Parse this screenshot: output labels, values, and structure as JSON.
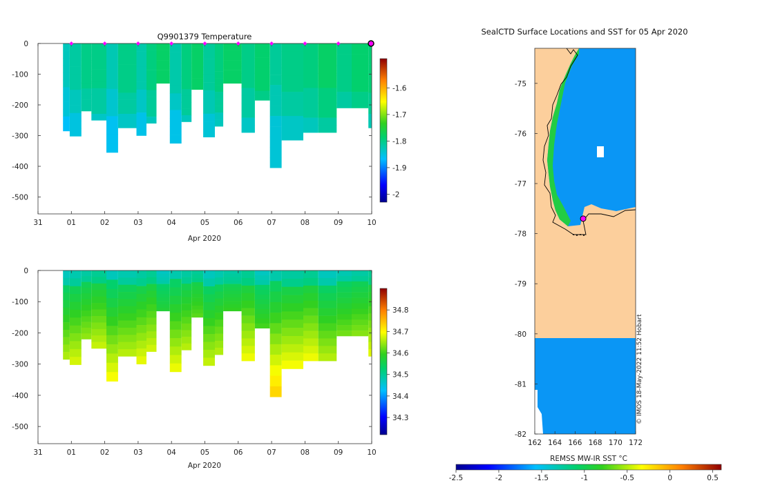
{
  "chart_data": [
    {
      "type": "heatmap",
      "title": "Q9901379  Temperature",
      "xlabel": "Apr 2020",
      "ylabel": "",
      "x_ticks": [
        "31",
        "01",
        "02",
        "03",
        "04",
        "05",
        "06",
        "07",
        "08",
        "09",
        "10"
      ],
      "y_ticks": [
        "0",
        "-100",
        "-200",
        "-300",
        "-400",
        "-500"
      ],
      "ylim": [
        -555,
        0
      ],
      "colorbar_ticks": [
        "-1.6",
        "-1.7",
        "-1.8",
        "-1.9",
        "-2"
      ],
      "colorbar_range": [
        -2.03,
        -1.49
      ],
      "profile_markers_days": [
        1,
        2,
        3,
        4,
        5,
        6,
        7,
        8,
        9
      ],
      "profiles": [
        {
          "day": 0.75,
          "depth": 285,
          "value": -1.83
        },
        {
          "day": 0.95,
          "depth": 302,
          "value": -1.82
        },
        {
          "day": 1.3,
          "depth": 220,
          "value": -1.81
        },
        {
          "day": 1.6,
          "depth": 250,
          "value": -1.8
        },
        {
          "day": 2.05,
          "depth": 355,
          "value": -1.83
        },
        {
          "day": 2.4,
          "depth": 275,
          "value": -1.81
        },
        {
          "day": 2.95,
          "depth": 300,
          "value": -1.82
        },
        {
          "day": 3.25,
          "depth": 260,
          "value": -1.8
        },
        {
          "day": 3.55,
          "depth": 130,
          "value": -1.79
        },
        {
          "day": 3.95,
          "depth": 325,
          "value": -1.82
        },
        {
          "day": 4.3,
          "depth": 255,
          "value": -1.8
        },
        {
          "day": 4.6,
          "depth": 150,
          "value": -1.79
        },
        {
          "day": 4.95,
          "depth": 305,
          "value": -1.81
        },
        {
          "day": 5.3,
          "depth": 270,
          "value": -1.8
        },
        {
          "day": 5.55,
          "depth": 130,
          "value": -1.79
        },
        {
          "day": 6.1,
          "depth": 290,
          "value": -1.8
        },
        {
          "day": 6.5,
          "depth": 185,
          "value": -1.79
        },
        {
          "day": 6.95,
          "depth": 405,
          "value": -1.82
        },
        {
          "day": 7.3,
          "depth": 315,
          "value": -1.8
        },
        {
          "day": 7.95,
          "depth": 290,
          "value": -1.8
        },
        {
          "day": 8.4,
          "depth": 290,
          "value": -1.79
        },
        {
          "day": 8.95,
          "depth": 210,
          "value": -1.8
        },
        {
          "day": 9.4,
          "depth": 210,
          "value": -1.79
        },
        {
          "day": 9.9,
          "depth": 275,
          "value": -1.8
        }
      ]
    },
    {
      "type": "heatmap",
      "title": "",
      "xlabel": "Apr 2020",
      "ylabel": "",
      "x_ticks": [
        "31",
        "01",
        "02",
        "03",
        "04",
        "05",
        "06",
        "07",
        "08",
        "09",
        "10"
      ],
      "y_ticks": [
        "0",
        "-100",
        "-200",
        "-300",
        "-400",
        "-500"
      ],
      "ylim": [
        -555,
        0
      ],
      "colorbar_ticks": [
        "34.8",
        "34.7",
        "34.6",
        "34.5",
        "34.4",
        "34.3"
      ],
      "colorbar_range": [
        34.22,
        34.9
      ],
      "profiles": [
        {
          "day": 0.75,
          "depth": 285
        },
        {
          "day": 0.95,
          "depth": 302
        },
        {
          "day": 1.3,
          "depth": 220
        },
        {
          "day": 1.6,
          "depth": 250
        },
        {
          "day": 2.05,
          "depth": 355
        },
        {
          "day": 2.4,
          "depth": 275
        },
        {
          "day": 2.95,
          "depth": 300
        },
        {
          "day": 3.25,
          "depth": 260
        },
        {
          "day": 3.55,
          "depth": 130
        },
        {
          "day": 3.95,
          "depth": 325
        },
        {
          "day": 4.3,
          "depth": 255
        },
        {
          "day": 4.6,
          "depth": 150
        },
        {
          "day": 4.95,
          "depth": 305
        },
        {
          "day": 5.3,
          "depth": 270
        },
        {
          "day": 5.55,
          "depth": 130
        },
        {
          "day": 6.1,
          "depth": 290
        },
        {
          "day": 6.5,
          "depth": 185
        },
        {
          "day": 6.95,
          "depth": 405
        },
        {
          "day": 7.3,
          "depth": 315
        },
        {
          "day": 7.95,
          "depth": 290
        },
        {
          "day": 8.4,
          "depth": 290
        },
        {
          "day": 8.95,
          "depth": 210
        },
        {
          "day": 9.4,
          "depth": 210
        },
        {
          "day": 9.9,
          "depth": 275
        }
      ]
    },
    {
      "type": "heatmap",
      "title": "SealCTD Surface Locations and SST for 05 Apr 2020",
      "xlabel": "",
      "ylabel": "",
      "x_ticks": [
        "162",
        "164",
        "166",
        "168",
        "170",
        "172"
      ],
      "y_ticks": [
        "-75",
        "-76",
        "-77",
        "-78",
        "-79",
        "-80",
        "-81",
        "-82"
      ],
      "xlim": [
        162,
        172
      ],
      "ylim": [
        -82,
        -74.3
      ],
      "colorbar_label": "REMSS MW-IR SST °C",
      "colorbar_ticks": [
        "-2.5",
        "-2",
        "-1.5",
        "-1",
        "-0.5",
        "0",
        "0.5"
      ],
      "colorbar_range": [
        -2.5,
        0.6
      ],
      "sst_value": -1.8,
      "seal_position": {
        "lon": 166.8,
        "lat": -77.7
      },
      "credit": "© IMOS 18-May-2022 11:52 Hobart"
    }
  ],
  "colors": {
    "land": "#fccf9c",
    "ocean_sst": "#0a96f5",
    "marker": "#ff00ff"
  }
}
